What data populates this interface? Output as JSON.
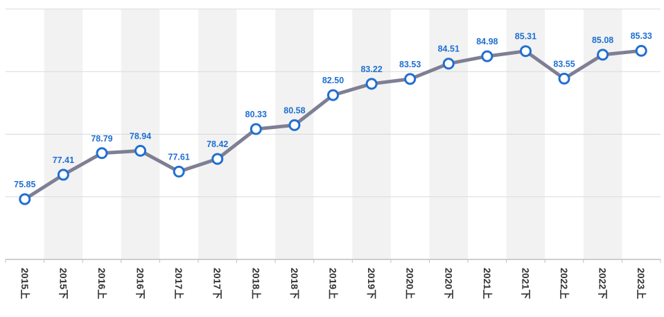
{
  "chart_data": {
    "type": "line",
    "title": "",
    "xlabel": "",
    "ylabel": "",
    "categories": [
      "2015上",
      "2015下",
      "2016上",
      "2016下",
      "2017上",
      "2017下",
      "2018上",
      "2018下",
      "2019上",
      "2019下",
      "2020上",
      "2020下",
      "2021上",
      "2021下",
      "2022上",
      "2022下",
      "2023上"
    ],
    "values": [
      75.85,
      77.41,
      78.79,
      78.94,
      77.61,
      78.42,
      80.33,
      80.58,
      82.5,
      83.22,
      83.53,
      84.51,
      84.98,
      85.31,
      83.55,
      85.08,
      85.33
    ],
    "value_labels": [
      "75.85",
      "77.41",
      "78.79",
      "78.94",
      "77.61",
      "78.42",
      "80.33",
      "80.58",
      "82.50",
      "83.22",
      "83.53",
      "84.51",
      "84.98",
      "85.31",
      "83.55",
      "85.08",
      "85.33"
    ],
    "ylim": [
      72,
      88
    ],
    "y_gridlines": [
      76,
      80,
      84,
      88
    ],
    "grid": true,
    "legend": "none",
    "colors": {
      "line": "#7e7f94",
      "marker_stroke": "#1f6fd1",
      "marker_fill": "#ffffff",
      "value_label": "#1f6fd1",
      "band_alt": "#f2f2f2",
      "gridline": "#d9d9d9",
      "axis": "#bfbfbf",
      "x_label": "#333333"
    }
  }
}
